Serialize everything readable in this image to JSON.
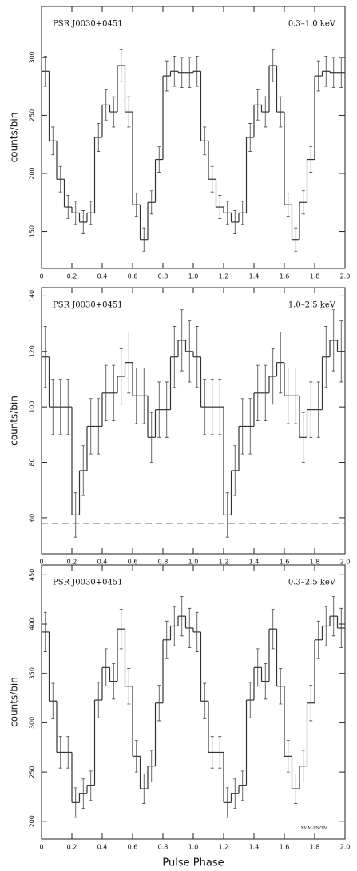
{
  "chart_data": [
    {
      "type": "histogram",
      "title": "PSR J0030+0451",
      "subtitle": "0.3–1.0 keV",
      "ylabel": "counts/bin",
      "bins": [
        0,
        0.05,
        0.1,
        0.15,
        0.2,
        0.25,
        0.3,
        0.35,
        0.4,
        0.45,
        0.5,
        0.55,
        0.6,
        0.65,
        0.7,
        0.75,
        0.8,
        0.85,
        0.9,
        0.95,
        1,
        1.05,
        1.1,
        1.15,
        1.2,
        1.25,
        1.3,
        1.35,
        1.4,
        1.45,
        1.5,
        1.55,
        1.6,
        1.65,
        1.7,
        1.75,
        1.8,
        1.85,
        1.9,
        1.95,
        2
      ],
      "values": [
        288,
        228,
        195,
        171,
        166,
        158,
        166,
        231,
        259,
        253,
        293,
        253,
        173,
        143,
        175,
        212,
        284,
        288,
        287,
        287,
        288,
        228,
        195,
        171,
        166,
        158,
        166,
        231,
        259,
        253,
        293,
        253,
        173,
        143,
        175,
        212,
        284,
        288,
        287,
        287
      ],
      "errors": [
        13,
        12,
        11,
        10,
        10,
        10,
        10,
        12,
        13,
        13,
        14,
        13,
        10,
        10,
        10,
        11,
        13,
        13,
        13,
        13,
        13,
        12,
        11,
        10,
        10,
        10,
        10,
        12,
        13,
        13,
        14,
        13,
        10,
        10,
        10,
        11,
        13,
        13,
        13,
        13
      ],
      "color": "#333333",
      "xlim": [
        0,
        2
      ],
      "xticks": [
        0,
        0.2,
        0.4,
        0.6,
        0.8,
        {
          "value": 1,
          "label": "1.0"
        },
        1.2,
        1.4,
        1.6,
        1.8,
        {
          "value": 2,
          "label": "2.0"
        }
      ],
      "ylim": [
        118,
        344
      ],
      "yticks": [
        150,
        200,
        250,
        300
      ]
    },
    {
      "type": "histogram",
      "title": "PSR J0030+0451",
      "subtitle": "1.0–2.5 keV",
      "ylabel": "counts/bin",
      "bins": [
        0,
        0.05,
        0.1,
        0.15,
        0.2,
        0.25,
        0.3,
        0.35,
        0.4,
        0.45,
        0.5,
        0.55,
        0.6,
        0.65,
        0.7,
        0.75,
        0.8,
        0.85,
        0.9,
        0.95,
        1,
        1.05,
        1.1,
        1.15,
        1.2,
        1.25,
        1.3,
        1.35,
        1.4,
        1.45,
        1.5,
        1.55,
        1.6,
        1.65,
        1.7,
        1.75,
        1.8,
        1.85,
        1.9,
        1.95,
        2
      ],
      "values": [
        118,
        100,
        100,
        100,
        61,
        77,
        93,
        93,
        105,
        105,
        111,
        116,
        104,
        104,
        89,
        99,
        99,
        118,
        124,
        120,
        118,
        100,
        100,
        100,
        61,
        77,
        93,
        93,
        105,
        105,
        111,
        116,
        104,
        104,
        89,
        99,
        99,
        118,
        124,
        120
      ],
      "errors": [
        11,
        10,
        10,
        10,
        8,
        9,
        10,
        10,
        10,
        10,
        10,
        11,
        10,
        10,
        9,
        10,
        10,
        11,
        11,
        11,
        11,
        10,
        10,
        10,
        8,
        9,
        10,
        10,
        10,
        10,
        10,
        11,
        10,
        10,
        9,
        10,
        10,
        11,
        11,
        11
      ],
      "color": "#333333",
      "hline": 58,
      "xlim": [
        0,
        2
      ],
      "xticks": [
        0,
        0.2,
        0.4,
        0.6,
        0.8,
        {
          "value": 1,
          "label": "1.0"
        },
        1.2,
        1.4,
        1.6,
        1.8,
        {
          "value": 2,
          "label": "2.0"
        }
      ],
      "ylim": [
        47,
        143
      ],
      "yticks": [
        60,
        80,
        100,
        120,
        140
      ]
    },
    {
      "type": "histogram",
      "title": "PSR J0030+0451",
      "subtitle": "0.3–2.5 keV",
      "ylabel": "counts/bin",
      "xlabel": "Pulse Phase",
      "note": "XMM-PN/TM",
      "bins": [
        0,
        0.05,
        0.1,
        0.15,
        0.2,
        0.25,
        0.3,
        0.35,
        0.4,
        0.45,
        0.5,
        0.55,
        0.6,
        0.65,
        0.7,
        0.75,
        0.8,
        0.85,
        0.9,
        0.95,
        1,
        1.05,
        1.1,
        1.15,
        1.2,
        1.25,
        1.3,
        1.35,
        1.4,
        1.45,
        1.5,
        1.55,
        1.6,
        1.65,
        1.7,
        1.75,
        1.8,
        1.85,
        1.9,
        1.95,
        2
      ],
      "values": [
        392,
        322,
        270,
        270,
        219,
        228,
        236,
        323,
        356,
        342,
        395,
        337,
        266,
        233,
        256,
        320,
        384,
        398,
        408,
        396,
        392,
        322,
        270,
        270,
        219,
        228,
        236,
        323,
        356,
        342,
        395,
        337,
        266,
        233,
        256,
        320,
        384,
        398,
        408,
        396
      ],
      "errors": [
        20,
        18,
        16,
        16,
        15,
        15,
        15,
        18,
        19,
        18,
        20,
        18,
        16,
        15,
        16,
        18,
        19,
        20,
        20,
        20,
        20,
        18,
        16,
        16,
        15,
        15,
        15,
        18,
        19,
        18,
        20,
        18,
        16,
        15,
        16,
        18,
        19,
        20,
        20,
        20
      ],
      "color": "#333333",
      "xlim": [
        0,
        2
      ],
      "xticks": [
        0,
        0.2,
        0.4,
        0.6,
        0.8,
        {
          "value": 1,
          "label": "1.0"
        },
        1.2,
        1.4,
        1.6,
        1.8,
        {
          "value": 2,
          "label": "2.0"
        }
      ],
      "ylim": [
        182,
        460
      ],
      "yticks": [
        200,
        250,
        300,
        350,
        400,
        450
      ]
    }
  ]
}
